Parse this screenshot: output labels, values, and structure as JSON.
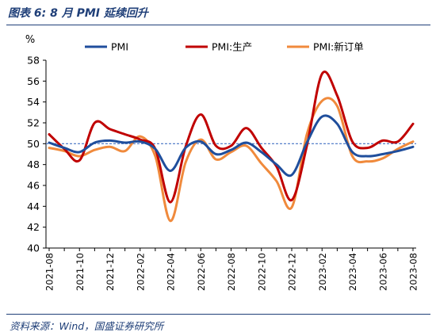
{
  "figure": {
    "title": "图表 6:  8 月 PMI 延续回升",
    "source": "资料来源：Wind，国盛证券研究所"
  },
  "colors": {
    "title": "#1f3f78",
    "pmi": "#1f4e9c",
    "production": "#c00000",
    "new_orders": "#f08a3c",
    "reference_line": "#4472c4"
  },
  "chart_data": {
    "type": "line",
    "y_unit_label": "%",
    "ylim": [
      40,
      58
    ],
    "yticks": [
      40,
      42,
      44,
      46,
      48,
      50,
      52,
      54,
      56,
      58
    ],
    "x": [
      "2021-08",
      "2021-09",
      "2021-10",
      "2021-11",
      "2021-12",
      "2022-01",
      "2022-02",
      "2022-03",
      "2022-04",
      "2022-05",
      "2022-06",
      "2022-07",
      "2022-08",
      "2022-09",
      "2022-10",
      "2022-11",
      "2022-12",
      "2023-01",
      "2023-02",
      "2023-03",
      "2023-04",
      "2023-05",
      "2023-06",
      "2023-07",
      "2023-08"
    ],
    "xtick_labels": [
      "2021-08",
      "2021-10",
      "2021-12",
      "2022-02",
      "2022-04",
      "2022-06",
      "2022-08",
      "2022-10",
      "2022-12",
      "2023-02",
      "2023-04",
      "2023-06",
      "2023-08"
    ],
    "reference_value": 50,
    "legend_position": "top",
    "series": [
      {
        "name": "PMI",
        "color": "#1f4e9c",
        "values": [
          50.1,
          49.6,
          49.2,
          50.1,
          50.3,
          50.1,
          50.2,
          49.5,
          47.4,
          49.6,
          50.2,
          49.0,
          49.4,
          50.1,
          49.2,
          48.0,
          47.0,
          50.1,
          52.6,
          51.9,
          49.2,
          48.8,
          49.0,
          49.3,
          49.7
        ]
      },
      {
        "name": "PMI:生产",
        "color": "#c00000",
        "values": [
          50.9,
          49.5,
          48.4,
          52.0,
          51.4,
          50.9,
          50.4,
          49.5,
          44.4,
          49.7,
          52.8,
          49.8,
          49.8,
          51.5,
          49.6,
          47.8,
          44.6,
          49.8,
          56.7,
          54.6,
          50.2,
          49.6,
          50.3,
          50.2,
          51.9
        ]
      },
      {
        "name": "PMI:新订单",
        "color": "#f08a3c",
        "values": [
          49.6,
          49.3,
          48.8,
          49.4,
          49.7,
          49.3,
          50.7,
          48.8,
          42.6,
          48.2,
          50.4,
          48.5,
          49.2,
          49.8,
          48.1,
          46.4,
          43.9,
          50.9,
          54.1,
          53.6,
          48.8,
          48.3,
          48.6,
          49.5,
          50.2
        ]
      }
    ]
  }
}
